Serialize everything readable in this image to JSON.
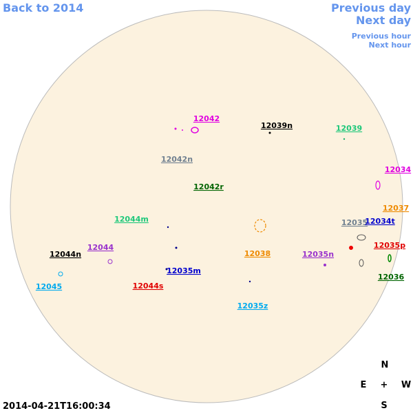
{
  "nav": {
    "back": "Back to 2014",
    "previous_day": "Previous day",
    "next_day": "Next day",
    "previous_hour": "Previous hour",
    "next_hour": "Next hour"
  },
  "regions": [
    "12042",
    "12039n",
    "12039",
    "12042n",
    "12034",
    "12042r",
    "12037",
    "12044m",
    "12035",
    "12034t",
    "12044n",
    "12044",
    "12038",
    "12035n",
    "12035p",
    "12035m",
    "12045",
    "12044s",
    "12036",
    "12035z"
  ],
  "timestamp": "2014-04-21T16:00:34",
  "compass": {
    "north": "N",
    "east": "E",
    "center": "+",
    "west": "W",
    "south": "S"
  }
}
